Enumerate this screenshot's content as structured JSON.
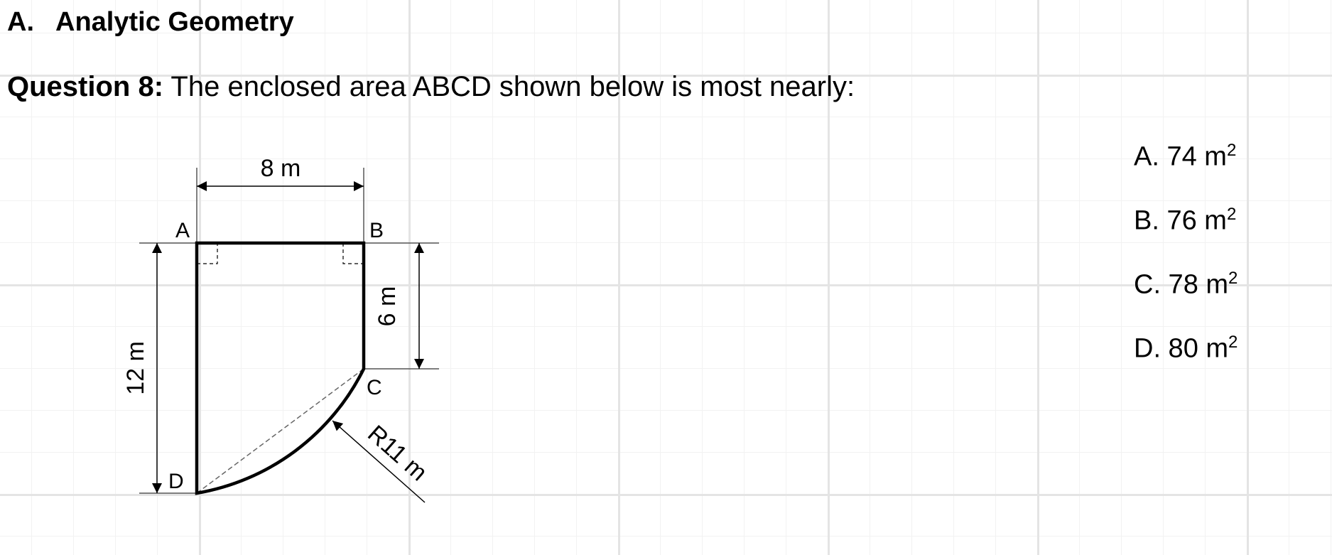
{
  "section": {
    "letter": "A.",
    "title": "Analytic Geometry"
  },
  "question": {
    "label": "Question 8:",
    "text": " The enclosed area ABCD shown below is most nearly:"
  },
  "options": [
    {
      "label": "A. 74 m",
      "exp": "2"
    },
    {
      "label": "B. 76 m",
      "exp": "2"
    },
    {
      "label": "C. 78 m",
      "exp": "2"
    },
    {
      "label": "D. 80 m",
      "exp": "2"
    }
  ],
  "figure": {
    "points": {
      "a": "A",
      "b": "B",
      "c": "C",
      "d": "D"
    },
    "dims": {
      "top": "8 m",
      "right": "6 m",
      "left": "12 m",
      "radius": "R11 m"
    }
  }
}
